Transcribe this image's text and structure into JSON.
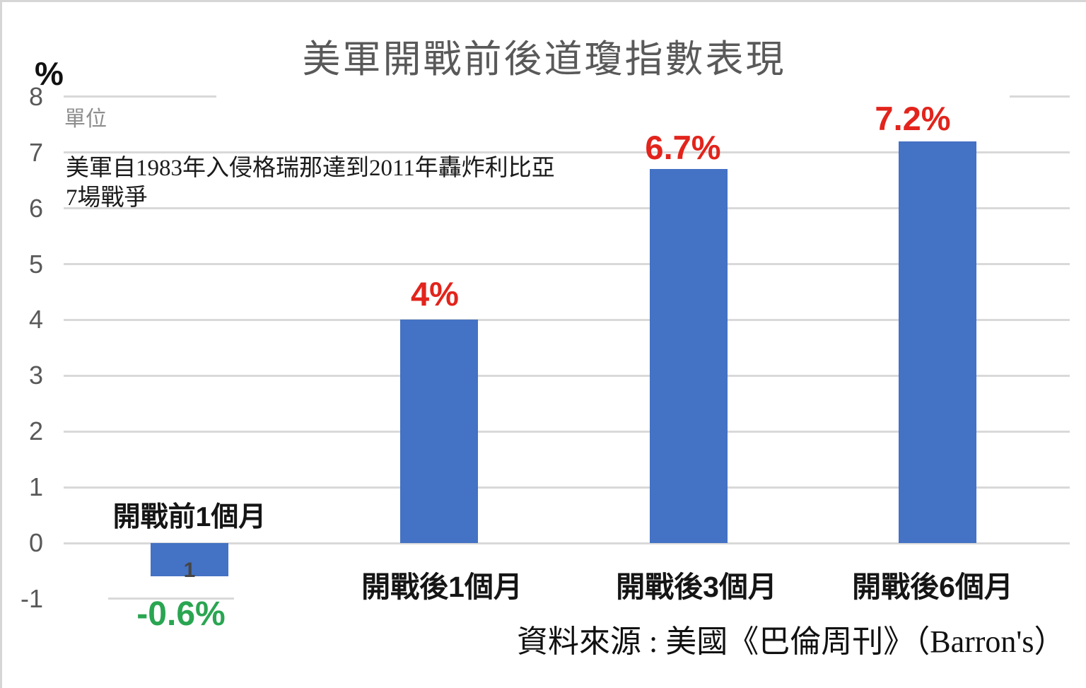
{
  "chart_data": {
    "type": "bar",
    "title": "美軍開戰前後道瓊指數表現",
    "y_axis_unit": "%",
    "unit_caption": "單位",
    "annotations": [
      "美軍自1983年入侵格瑞那達到2011年轟炸利比亞",
      "7場戰爭"
    ],
    "categories": [
      "開戰前1個月",
      "開戰後1個月",
      "開戰後3個月",
      "開戰後6個月"
    ],
    "values": [
      -0.6,
      4,
      6.7,
      7.2
    ],
    "data_labels": [
      "-0.6%",
      "4%",
      "6.7%",
      "7.2%"
    ],
    "data_label_colors": [
      "#2aa551",
      "#e2241c",
      "#e2241c",
      "#e2241c"
    ],
    "bar1_inner_label": "1",
    "source": "資料來源 : 美國《巴倫周刊》（Barron's）",
    "yticks": [
      8,
      7,
      6,
      5,
      4,
      3,
      2,
      1,
      0,
      -1
    ],
    "ylim": [
      -1,
      8
    ],
    "grid": true,
    "legend": false,
    "bar_color": "#4472c4",
    "gridline_color": "#d9d9d9",
    "axis_text_color": "#595959"
  }
}
